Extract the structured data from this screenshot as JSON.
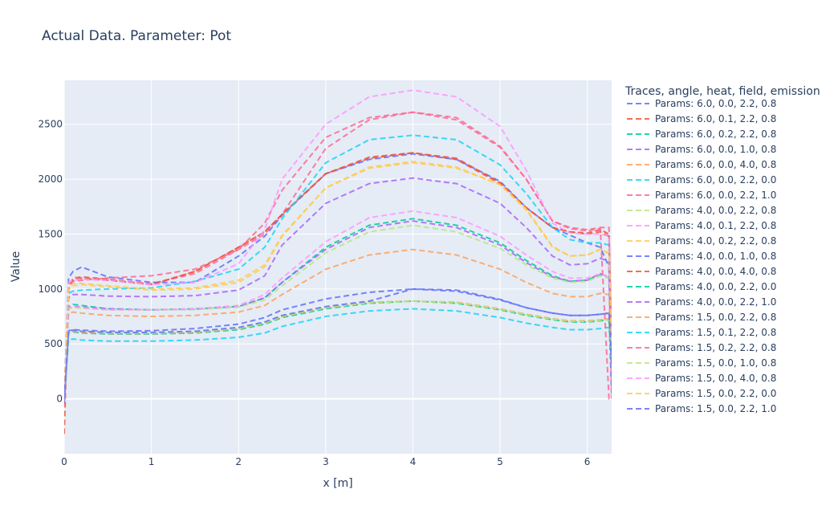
{
  "chart_data": {
    "type": "line",
    "title": "Actual Data. Parameter: Pot",
    "xlabel": "x [m]",
    "ylabel": "Value",
    "xlim": [
      0,
      6.28
    ],
    "ylim": [
      -500,
      2900
    ],
    "xticks": [
      0,
      1,
      2,
      3,
      4,
      5,
      6
    ],
    "yticks": [
      0,
      500,
      1000,
      1500,
      2000,
      2500
    ],
    "grid": true,
    "line_style": "dashed",
    "legend_position": "right",
    "legend_title": "Traces, angle, heat, field, emission",
    "x": [
      0.0,
      0.05,
      0.1,
      0.2,
      0.5,
      1.0,
      1.5,
      2.0,
      2.3,
      2.5,
      3.0,
      3.5,
      4.0,
      4.5,
      5.0,
      5.3,
      5.6,
      5.8,
      6.0,
      6.15,
      6.25,
      6.28
    ],
    "series": [
      {
        "name": "Params: 6.0, 0.0, 2.2, 0.8",
        "color": "#636efa",
        "values": [
          -50,
          620,
          630,
          625,
          615,
          620,
          640,
          680,
          740,
          810,
          910,
          970,
          1000,
          980,
          900,
          830,
          780,
          760,
          760,
          770,
          780,
          50
        ]
      },
      {
        "name": "Params: 6.0, 0.1, 2.2, 0.8",
        "color": "#ef553b",
        "values": [
          -320,
          1000,
          1100,
          1110,
          1090,
          1040,
          1160,
          1380,
          1520,
          1680,
          2050,
          2190,
          2240,
          2180,
          1960,
          1740,
          1560,
          1520,
          1510,
          1540,
          1500,
          500
        ]
      },
      {
        "name": "Params: 6.0, 0.2, 2.2, 0.8",
        "color": "#00cc96",
        "values": [
          0,
          840,
          860,
          850,
          820,
          810,
          820,
          840,
          920,
          1060,
          1380,
          1580,
          1640,
          1580,
          1420,
          1260,
          1120,
          1070,
          1080,
          1130,
          1100,
          300
        ]
      },
      {
        "name": "Params: 6.0, 0.0, 1.0, 0.8",
        "color": "#ab63fa",
        "values": [
          0,
          830,
          840,
          835,
          820,
          810,
          815,
          840,
          920,
          1060,
          1360,
          1560,
          1620,
          1560,
          1400,
          1240,
          1110,
          1070,
          1080,
          1140,
          1110,
          300
        ]
      },
      {
        "name": "Params: 6.0, 0.0, 4.0, 0.8",
        "color": "#ffa15a",
        "values": [
          0,
          780,
          790,
          780,
          760,
          750,
          760,
          790,
          850,
          950,
          1180,
          1310,
          1360,
          1310,
          1180,
          1060,
          960,
          930,
          930,
          960,
          950,
          300
        ]
      },
      {
        "name": "Params: 6.0, 0.0, 2.2, 0.0",
        "color": "#19d3f3",
        "values": [
          0,
          540,
          545,
          535,
          525,
          525,
          535,
          560,
          600,
          660,
          750,
          800,
          820,
          800,
          740,
          690,
          650,
          630,
          630,
          640,
          650,
          400
        ]
      },
      {
        "name": "Params: 6.0, 0.0, 2.2, 1.0",
        "color": "#ff6692",
        "values": [
          0,
          1050,
          1080,
          1090,
          1080,
          1050,
          1140,
          1360,
          1500,
          1680,
          2280,
          2540,
          2610,
          2540,
          2290,
          2000,
          1620,
          1550,
          1530,
          1550,
          0,
          0
        ]
      },
      {
        "name": "Params: 4.0, 0.0, 2.2, 0.8",
        "color": "#b6e880",
        "values": [
          0,
          820,
          830,
          825,
          810,
          810,
          815,
          835,
          900,
          1030,
          1330,
          1520,
          1580,
          1520,
          1370,
          1220,
          1100,
          1060,
          1070,
          1120,
          1100,
          300
        ]
      },
      {
        "name": "Params: 4.0, 0.1, 2.2, 0.8",
        "color": "#ff97ff",
        "values": [
          0,
          830,
          840,
          830,
          810,
          810,
          820,
          850,
          950,
          1100,
          1430,
          1650,
          1710,
          1650,
          1480,
          1310,
          1160,
          1100,
          1100,
          1140,
          1110,
          300
        ]
      },
      {
        "name": "Params: 4.0, 0.2, 2.2, 0.8",
        "color": "#fecb52",
        "values": [
          0,
          1000,
          1030,
          1040,
          1020,
          990,
          1000,
          1060,
          1200,
          1480,
          1920,
          2100,
          2150,
          2100,
          1950,
          1720,
          1380,
          1300,
          1310,
          1360,
          1320,
          500
        ]
      },
      {
        "name": "Params: 4.0, 0.0, 1.0, 0.8",
        "color": "#636efa",
        "values": [
          0,
          1100,
          1160,
          1200,
          1110,
          1060,
          1060,
          1300,
          1480,
          1670,
          2050,
          2180,
          2230,
          2180,
          1980,
          1740,
          1560,
          1490,
          1420,
          1380,
          1200,
          300
        ]
      },
      {
        "name": "Params: 4.0, 0.0, 4.0, 0.8",
        "color": "#ef553b",
        "values": [
          0,
          1000,
          1080,
          1100,
          1080,
          1040,
          1160,
          1380,
          1520,
          1680,
          2050,
          2200,
          2240,
          2190,
          1970,
          1740,
          1560,
          1520,
          1500,
          1520,
          1480,
          500
        ]
      },
      {
        "name": "Params: 4.0, 0.0, 2.2, 0.0",
        "color": "#00cc96",
        "values": [
          0,
          600,
          610,
          600,
          590,
          590,
          600,
          630,
          680,
          740,
          820,
          870,
          890,
          870,
          810,
          760,
          720,
          700,
          700,
          710,
          720,
          300
        ]
      },
      {
        "name": "Params: 4.0, 0.0, 2.2, 1.0",
        "color": "#ab63fa",
        "values": [
          0,
          920,
          950,
          950,
          935,
          930,
          940,
          990,
          1120,
          1400,
          1780,
          1960,
          2010,
          1960,
          1780,
          1560,
          1300,
          1220,
          1230,
          1280,
          1250,
          400
        ]
      },
      {
        "name": "Params: 1.5, 0.0, 2.2, 0.8",
        "color": "#ffa15a",
        "values": [
          0,
          610,
          615,
          605,
          595,
          595,
          605,
          640,
          690,
          750,
          830,
          880,
          890,
          880,
          820,
          770,
          730,
          710,
          710,
          720,
          730,
          300
        ]
      },
      {
        "name": "Params: 1.5, 0.1, 2.2, 0.8",
        "color": "#19d3f3",
        "values": [
          0,
          960,
          980,
          990,
          1000,
          1010,
          1070,
          1180,
          1380,
          1640,
          2150,
          2360,
          2400,
          2360,
          2130,
          1870,
          1560,
          1450,
          1420,
          1420,
          1400,
          500
        ]
      },
      {
        "name": "Params: 1.5, 0.2, 2.2, 0.8",
        "color": "#ff6692",
        "values": [
          0,
          1000,
          1070,
          1080,
          1100,
          1120,
          1180,
          1360,
          1600,
          1900,
          2380,
          2560,
          2610,
          2560,
          2300,
          2000,
          1620,
          1560,
          1540,
          1560,
          1560,
          0
        ]
      },
      {
        "name": "Params: 1.5, 0.0, 1.0, 0.8",
        "color": "#b6e880",
        "values": [
          0,
          620,
          625,
          615,
          600,
          600,
          610,
          640,
          690,
          750,
          830,
          875,
          890,
          875,
          815,
          765,
          725,
          705,
          705,
          715,
          720,
          300
        ]
      },
      {
        "name": "Params: 1.5, 0.0, 4.0, 0.8",
        "color": "#ff97ff",
        "values": [
          0,
          1060,
          1080,
          1090,
          1080,
          1040,
          1060,
          1230,
          1540,
          2000,
          2500,
          2750,
          2810,
          2750,
          2480,
          2080,
          1600,
          1510,
          1500,
          1500,
          1480,
          500
        ]
      },
      {
        "name": "Params: 1.5, 0.0, 2.2, 0.0",
        "color": "#fecb52",
        "values": [
          0,
          1020,
          1050,
          1050,
          1030,
          1000,
          1010,
          1080,
          1220,
          1490,
          1920,
          2110,
          2160,
          2110,
          1950,
          1730,
          1390,
          1300,
          1310,
          1360,
          1330,
          500
        ]
      },
      {
        "name": "Params: 1.5, 0.0, 2.2, 1.0",
        "color": "#636efa",
        "values": [
          0,
          620,
          625,
          615,
          605,
          605,
          615,
          650,
          700,
          760,
          840,
          890,
          1000,
          990,
          905,
          830,
          780,
          760,
          760,
          770,
          780,
          300
        ]
      }
    ]
  }
}
